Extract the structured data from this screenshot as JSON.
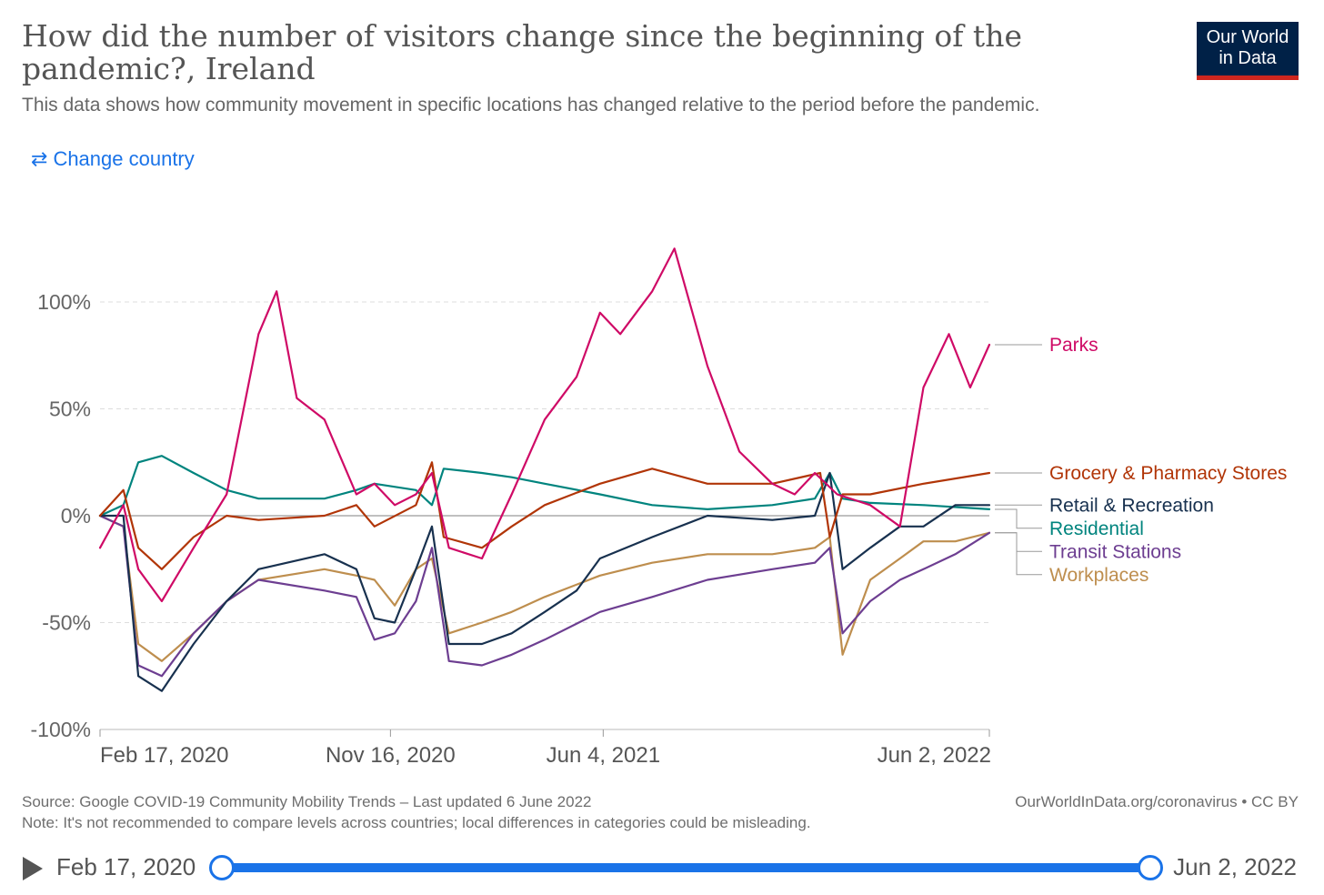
{
  "header": {
    "title": "How did the number of visitors change since the beginning of the pandemic?, Ireland",
    "subtitle": "This data shows how community movement in specific locations has changed relative to the period before the pandemic.",
    "logo_line1": "Our World",
    "logo_line2": "in Data"
  },
  "controls": {
    "change_country_label": "Change country",
    "change_country_icon": "swap-arrows-icon"
  },
  "chart_data": {
    "type": "line",
    "title": "How did the number of visitors change since the beginning of the pandemic?, Ireland",
    "ylim": [
      -100,
      100
    ],
    "y_ticks": [
      -100,
      -50,
      0,
      50,
      100
    ],
    "y_tick_labels": [
      "-100%",
      "-50%",
      "0%",
      "50%",
      "100%"
    ],
    "x_range": [
      "2020-02-17",
      "2022-06-02"
    ],
    "x_ticks": [
      "2020-02-17",
      "2020-11-16",
      "2021-06-04",
      "2022-06-02"
    ],
    "x_tick_labels": [
      "Feb 17, 2020",
      "Nov 16, 2020",
      "Jun 4, 2021",
      "Jun 2, 2022"
    ],
    "grid": "horizontal dashed",
    "legend": "right, line labels",
    "series": [
      {
        "name": "Parks",
        "color": "#cf0a66",
        "x": [
          "2020-02-17",
          "2020-03-10",
          "2020-03-24",
          "2020-04-15",
          "2020-05-15",
          "2020-06-15",
          "2020-07-15",
          "2020-08-01",
          "2020-08-20",
          "2020-09-15",
          "2020-10-15",
          "2020-11-01",
          "2020-11-20",
          "2020-12-10",
          "2020-12-25",
          "2021-01-10",
          "2021-02-10",
          "2021-03-10",
          "2021-04-10",
          "2021-05-10",
          "2021-06-01",
          "2021-06-20",
          "2021-07-20",
          "2021-08-10",
          "2021-09-10",
          "2021-10-10",
          "2021-11-10",
          "2021-12-01",
          "2021-12-20",
          "2022-01-10",
          "2022-02-10",
          "2022-03-10",
          "2022-04-01",
          "2022-04-25",
          "2022-05-15",
          "2022-06-02"
        ],
        "y": [
          -15,
          5,
          -25,
          -40,
          -15,
          10,
          85,
          105,
          55,
          45,
          10,
          15,
          5,
          10,
          20,
          -15,
          -20,
          10,
          45,
          65,
          95,
          85,
          105,
          125,
          70,
          30,
          15,
          10,
          20,
          10,
          5,
          -5,
          60,
          85,
          60,
          80
        ]
      },
      {
        "name": "Grocery & Pharmacy Stores",
        "color": "#b13507",
        "x": [
          "2020-02-17",
          "2020-03-10",
          "2020-03-24",
          "2020-04-15",
          "2020-05-15",
          "2020-06-15",
          "2020-07-15",
          "2020-09-15",
          "2020-10-15",
          "2020-11-01",
          "2020-12-10",
          "2020-12-25",
          "2021-01-05",
          "2021-02-10",
          "2021-03-10",
          "2021-04-10",
          "2021-06-01",
          "2021-07-20",
          "2021-09-10",
          "2021-11-10",
          "2021-12-25",
          "2022-01-03",
          "2022-01-15",
          "2022-02-10",
          "2022-04-01",
          "2022-06-02"
        ],
        "y": [
          0,
          12,
          -15,
          -25,
          -10,
          0,
          -2,
          0,
          5,
          -5,
          5,
          25,
          -10,
          -15,
          -5,
          5,
          15,
          22,
          15,
          15,
          20,
          -10,
          10,
          10,
          15,
          20
        ]
      },
      {
        "name": "Retail & Recreation",
        "color": "#18314f",
        "x": [
          "2020-02-17",
          "2020-03-10",
          "2020-03-24",
          "2020-04-15",
          "2020-05-15",
          "2020-06-15",
          "2020-07-15",
          "2020-09-15",
          "2020-10-15",
          "2020-11-01",
          "2020-11-20",
          "2020-12-10",
          "2020-12-25",
          "2021-01-10",
          "2021-02-10",
          "2021-03-10",
          "2021-04-10",
          "2021-05-10",
          "2021-06-01",
          "2021-07-20",
          "2021-09-10",
          "2021-11-10",
          "2021-12-20",
          "2022-01-03",
          "2022-01-15",
          "2022-02-10",
          "2022-03-10",
          "2022-04-01",
          "2022-05-01",
          "2022-06-02"
        ],
        "y": [
          0,
          0,
          -75,
          -82,
          -60,
          -40,
          -25,
          -18,
          -25,
          -48,
          -50,
          -25,
          -5,
          -60,
          -60,
          -55,
          -45,
          -35,
          -20,
          -10,
          0,
          -2,
          0,
          20,
          -25,
          -15,
          -5,
          -5,
          5,
          5
        ]
      },
      {
        "name": "Residential",
        "color": "#00847e",
        "x": [
          "2020-02-17",
          "2020-03-10",
          "2020-03-24",
          "2020-04-15",
          "2020-05-15",
          "2020-06-15",
          "2020-07-15",
          "2020-09-15",
          "2020-10-15",
          "2020-11-01",
          "2020-12-10",
          "2020-12-25",
          "2021-01-05",
          "2021-02-10",
          "2021-03-10",
          "2021-04-10",
          "2021-06-01",
          "2021-07-20",
          "2021-09-10",
          "2021-11-10",
          "2021-12-20",
          "2022-01-03",
          "2022-01-15",
          "2022-02-10",
          "2022-04-01",
          "2022-06-02"
        ],
        "y": [
          0,
          5,
          25,
          28,
          20,
          12,
          8,
          8,
          12,
          15,
          12,
          5,
          22,
          20,
          18,
          15,
          10,
          5,
          3,
          5,
          8,
          20,
          8,
          6,
          5,
          3
        ]
      },
      {
        "name": "Transit Stations",
        "color": "#6d3e91",
        "x": [
          "2020-02-17",
          "2020-03-10",
          "2020-03-24",
          "2020-04-15",
          "2020-05-15",
          "2020-06-15",
          "2020-07-15",
          "2020-09-15",
          "2020-10-15",
          "2020-11-01",
          "2020-11-20",
          "2020-12-10",
          "2020-12-25",
          "2021-01-10",
          "2021-02-10",
          "2021-03-10",
          "2021-04-10",
          "2021-06-01",
          "2021-07-20",
          "2021-09-10",
          "2021-11-10",
          "2021-12-20",
          "2022-01-03",
          "2022-01-15",
          "2022-02-10",
          "2022-03-10",
          "2022-04-01",
          "2022-05-01",
          "2022-06-02"
        ],
        "y": [
          0,
          -5,
          -70,
          -75,
          -55,
          -40,
          -30,
          -35,
          -38,
          -58,
          -55,
          -40,
          -15,
          -68,
          -70,
          -65,
          -58,
          -45,
          -38,
          -30,
          -25,
          -22,
          -15,
          -55,
          -40,
          -30,
          -25,
          -18,
          -8
        ]
      },
      {
        "name": "Workplaces",
        "color": "#be8e4e",
        "x": [
          "2020-02-17",
          "2020-03-10",
          "2020-03-24",
          "2020-04-15",
          "2020-05-15",
          "2020-06-15",
          "2020-07-15",
          "2020-09-15",
          "2020-10-15",
          "2020-11-01",
          "2020-11-20",
          "2020-12-10",
          "2020-12-25",
          "2021-01-10",
          "2021-02-10",
          "2021-03-10",
          "2021-04-10",
          "2021-06-01",
          "2021-07-20",
          "2021-09-10",
          "2021-11-10",
          "2021-12-20",
          "2022-01-03",
          "2022-01-15",
          "2022-02-10",
          "2022-03-10",
          "2022-04-01",
          "2022-05-01",
          "2022-06-02"
        ],
        "y": [
          0,
          -5,
          -60,
          -68,
          -55,
          -40,
          -30,
          -25,
          -28,
          -30,
          -42,
          -25,
          -20,
          -55,
          -50,
          -45,
          -38,
          -28,
          -22,
          -18,
          -18,
          -15,
          -10,
          -65,
          -30,
          -20,
          -12,
          -12,
          -8
        ]
      }
    ]
  },
  "footer": {
    "source": "Source: Google COVID-19 Community Mobility Trends – Last updated 6 June 2022",
    "note": "Note: It's not recommended to compare levels across countries; local differences in categories could be misleading.",
    "url": "OurWorldInData.org/coronavirus • CC BY"
  },
  "timeline": {
    "play_icon": "play-icon",
    "start_label": "Feb 17, 2020",
    "end_label": "Jun 2, 2022"
  }
}
